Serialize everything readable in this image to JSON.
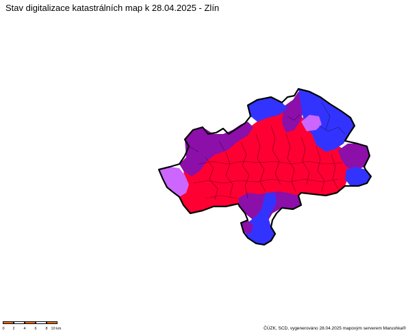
{
  "title": "Stav digitalizace katastrálních map k 28.04.2025 - Zlín",
  "credit": "ČÚZK, SCD, vygenerováno 28.04.2025 mapovým serverem Marushka®",
  "scalebar": {
    "labels": [
      "0",
      "2",
      "4",
      "6",
      "8",
      "10 km"
    ],
    "colors": [
      "#f07020",
      "#ffffff"
    ]
  },
  "legend_colors": {
    "red": "#ff0033",
    "dark_purple": "#8c0faa",
    "blue": "#3333ff",
    "light_purple": "#cc66ff",
    "border": "#000000"
  }
}
